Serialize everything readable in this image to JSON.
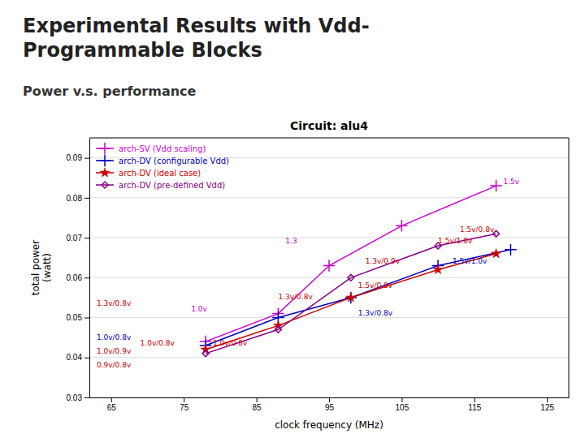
{
  "chart_data": {
    "type": "line",
    "slide_title": [
      "Experimental Results with Vdd-",
      "Programmable Blocks"
    ],
    "bullet": "Power v.s. performance",
    "title": "Circuit: alu4",
    "x_label": "clock frequency (MHz)",
    "y_label": "total power\n(watt)",
    "xlim": [
      62,
      128
    ],
    "ylim": [
      0.03,
      0.095
    ],
    "xticks": [
      65,
      75,
      85,
      95,
      105,
      115,
      125
    ],
    "yticks": [
      0.03,
      0.04,
      0.05,
      0.06,
      0.07,
      0.08,
      0.09
    ],
    "grid": "y",
    "legend": "upper-left",
    "series": [
      {
        "name": "arch-SV (Vdd scaling)",
        "color": "#cc00cc",
        "marker": "plus",
        "x": [
          78,
          88,
          95,
          105,
          118
        ],
        "values": [
          0.044,
          0.051,
          0.063,
          0.073,
          0.083
        ]
      },
      {
        "name": "arch-DV (configurable Vdd)",
        "color": "#0000bb",
        "marker": "plus",
        "x": [
          78,
          88,
          98,
          110,
          120
        ],
        "values": [
          0.043,
          0.05,
          0.055,
          0.063,
          0.067
        ]
      },
      {
        "name": "arch-DV (ideal case)",
        "color": "#cc0000",
        "marker": "star",
        "x": [
          78,
          88,
          98,
          110,
          118
        ],
        "values": [
          0.042,
          0.048,
          0.055,
          0.062,
          0.066
        ]
      },
      {
        "name": "arch-DV (pre-defined Vdd)",
        "color": "#880088",
        "marker": "diamond-open",
        "x": [
          78,
          88,
          98,
          110,
          118
        ],
        "values": [
          0.041,
          0.047,
          0.06,
          0.068,
          0.071
        ]
      }
    ],
    "annotations": [
      {
        "text": "1.5v",
        "x": 119,
        "y": 0.0835,
        "color": "#cc00cc"
      },
      {
        "text": "1.3",
        "x": 89,
        "y": 0.0685,
        "color": "#cc00cc"
      },
      {
        "text": "1.0v",
        "x": 76,
        "y": 0.0515,
        "color": "#cc00cc"
      },
      {
        "text": "1.5v/1.0v",
        "x": 112,
        "y": 0.0635,
        "color": "#0000bb"
      },
      {
        "text": "1.3v/0.8v",
        "x": 99,
        "y": 0.0505,
        "color": "#0000bb"
      },
      {
        "text": "1.0v/0.8v",
        "x": 63,
        "y": 0.0445,
        "color": "#0000bb"
      },
      {
        "text": "1.5v/1.0v",
        "x": 110,
        "y": 0.0685,
        "color": "#cc0000"
      },
      {
        "text": "1.5v/0.8v",
        "x": 99,
        "y": 0.0575,
        "color": "#cc0000"
      },
      {
        "text": "1.3v/0.8v",
        "x": 88,
        "y": 0.0545,
        "color": "#cc0000"
      },
      {
        "text": "1.3v/0.8v",
        "x": 63,
        "y": 0.053,
        "color": "#cc0000"
      },
      {
        "text": "1.0v/0.8v",
        "x": 69,
        "y": 0.043,
        "color": "#cc0000"
      },
      {
        "text": "1.0v/0.9v",
        "x": 63,
        "y": 0.041,
        "color": "#cc0000"
      },
      {
        "text": "1.3v/0.9v",
        "x": 100,
        "y": 0.0635,
        "color": "#cc0000"
      },
      {
        "text": "1.5v/0.8v",
        "x": 113,
        "y": 0.0715,
        "color": "#cc0000"
      },
      {
        "text": "1.0v/0.8v",
        "x": 79,
        "y": 0.043,
        "color": "#cc0000"
      },
      {
        "text": "0.9v/0.8v",
        "x": 63,
        "y": 0.0375,
        "color": "#cc0000"
      }
    ]
  }
}
